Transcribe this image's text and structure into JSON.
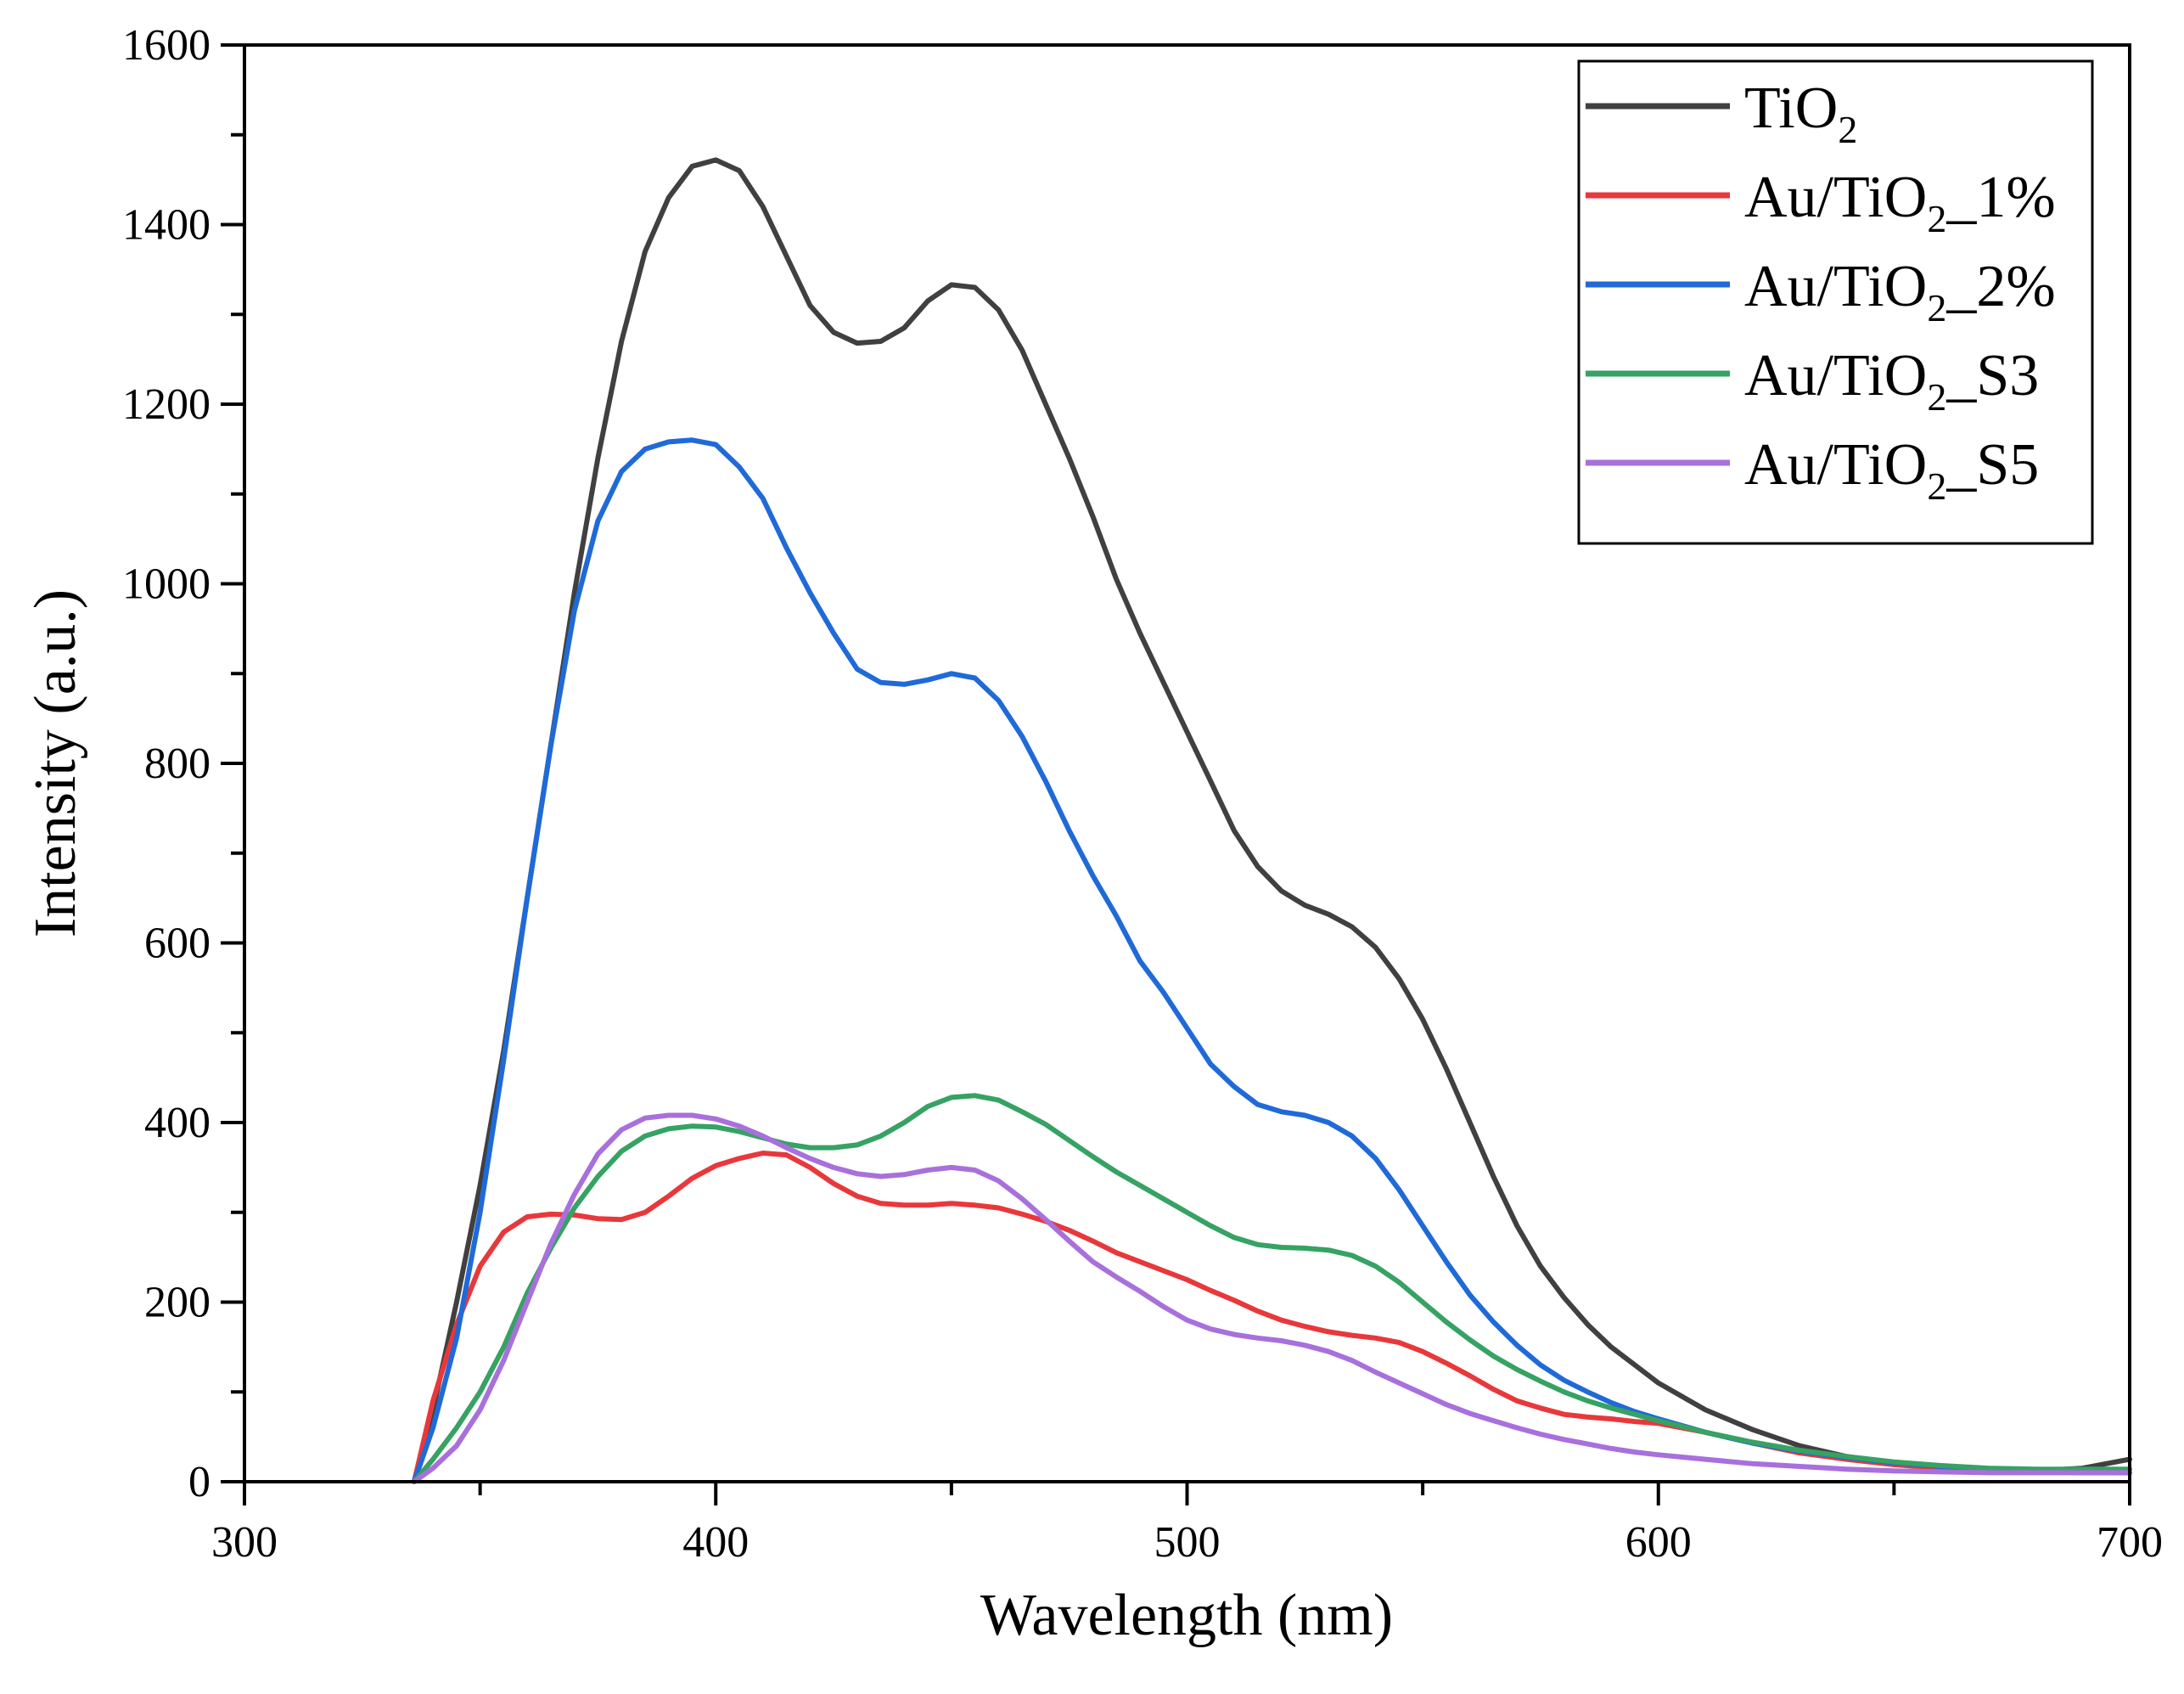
{
  "chart_data": {
    "type": "line",
    "title": "",
    "xlabel": "Wavelength (nm)",
    "ylabel": "Intensity (a.u.)",
    "xlim": [
      300,
      700
    ],
    "ylim": [
      0,
      1600
    ],
    "xticks": [
      300,
      400,
      500,
      600,
      700
    ],
    "yticks": [
      0,
      200,
      400,
      600,
      800,
      1000,
      1200,
      1400,
      1600
    ],
    "legend_position": "top-right",
    "series": [
      {
        "name": "TiO₂",
        "legend": {
          "base": "TiO",
          "sub": "2",
          "suffix": ""
        },
        "color": "#404040",
        "x": [
          336,
          340,
          345,
          350,
          355,
          360,
          365,
          370,
          375,
          380,
          385,
          390,
          395,
          400,
          405,
          410,
          415,
          420,
          425,
          430,
          435,
          440,
          445,
          450,
          455,
          460,
          465,
          470,
          475,
          480,
          485,
          490,
          495,
          500,
          505,
          510,
          515,
          520,
          525,
          530,
          535,
          540,
          545,
          550,
          555,
          560,
          565,
          570,
          575,
          580,
          585,
          590,
          595,
          600,
          610,
          620,
          630,
          640,
          650,
          660,
          670,
          680,
          690,
          700
        ],
        "y": [
          0,
          80,
          200,
          330,
          480,
          650,
          820,
          990,
          1140,
          1270,
          1370,
          1430,
          1465,
          1472,
          1460,
          1420,
          1365,
          1310,
          1280,
          1268,
          1270,
          1285,
          1315,
          1333,
          1330,
          1305,
          1260,
          1200,
          1140,
          1075,
          1005,
          945,
          890,
          835,
          780,
          725,
          685,
          658,
          642,
          632,
          618,
          595,
          560,
          515,
          460,
          400,
          340,
          285,
          240,
          205,
          175,
          150,
          130,
          110,
          80,
          58,
          40,
          28,
          20,
          15,
          13,
          12,
          15,
          25
        ]
      },
      {
        "name": "Au/TiO₂_1%",
        "legend": {
          "base": "Au/TiO",
          "sub": "2",
          "suffix": "_1%"
        },
        "color": "#e8383b",
        "x": [
          336,
          340,
          345,
          350,
          355,
          360,
          365,
          370,
          375,
          380,
          385,
          390,
          395,
          400,
          405,
          410,
          415,
          420,
          425,
          430,
          435,
          440,
          445,
          450,
          455,
          460,
          465,
          470,
          475,
          480,
          485,
          490,
          495,
          500,
          505,
          510,
          515,
          520,
          525,
          530,
          535,
          540,
          545,
          550,
          555,
          560,
          565,
          570,
          575,
          580,
          585,
          590,
          595,
          600,
          610,
          620,
          630,
          640,
          650,
          660,
          670,
          680,
          690,
          700
        ],
        "y": [
          0,
          90,
          175,
          240,
          278,
          295,
          298,
          297,
          293,
          292,
          300,
          318,
          338,
          352,
          360,
          366,
          364,
          350,
          332,
          318,
          310,
          308,
          308,
          310,
          308,
          305,
          298,
          290,
          280,
          268,
          255,
          245,
          235,
          225,
          213,
          202,
          190,
          180,
          173,
          167,
          163,
          160,
          155,
          145,
          132,
          118,
          103,
          90,
          82,
          75,
          72,
          70,
          67,
          65,
          55,
          43,
          32,
          25,
          19,
          15,
          12,
          11,
          10,
          10
        ]
      },
      {
        "name": "Au/TiO₂_2%",
        "legend": {
          "base": "Au/TiO",
          "sub": "2",
          "suffix": "_2%"
        },
        "color": "#1f6ad8",
        "x": [
          336,
          340,
          345,
          350,
          355,
          360,
          365,
          370,
          375,
          380,
          385,
          390,
          395,
          400,
          405,
          410,
          415,
          420,
          425,
          430,
          435,
          440,
          445,
          450,
          455,
          460,
          465,
          470,
          475,
          480,
          485,
          490,
          495,
          500,
          505,
          510,
          515,
          520,
          525,
          530,
          535,
          540,
          545,
          550,
          555,
          560,
          565,
          570,
          575,
          580,
          585,
          590,
          595,
          600,
          610,
          620,
          630,
          640,
          650,
          660,
          670,
          680,
          690,
          700
        ],
        "y": [
          0,
          60,
          160,
          300,
          470,
          650,
          820,
          970,
          1070,
          1125,
          1150,
          1158,
          1160,
          1155,
          1130,
          1095,
          1040,
          990,
          945,
          905,
          890,
          888,
          893,
          900,
          895,
          870,
          830,
          780,
          725,
          675,
          630,
          580,
          545,
          505,
          465,
          440,
          420,
          412,
          408,
          400,
          385,
          360,
          325,
          285,
          245,
          208,
          178,
          152,
          130,
          113,
          100,
          88,
          78,
          70,
          55,
          43,
          34,
          27,
          21,
          17,
          14,
          12,
          11,
          10
        ]
      },
      {
        "name": "Au/TiO₂_S3",
        "legend": {
          "base": "Au/TiO",
          "sub": "2",
          "suffix": "_S3"
        },
        "color": "#36a263",
        "x": [
          336,
          340,
          345,
          350,
          355,
          360,
          365,
          370,
          375,
          380,
          385,
          390,
          395,
          400,
          405,
          410,
          415,
          420,
          425,
          430,
          435,
          440,
          445,
          450,
          455,
          460,
          465,
          470,
          475,
          480,
          485,
          490,
          495,
          500,
          505,
          510,
          515,
          520,
          525,
          530,
          535,
          540,
          545,
          550,
          555,
          560,
          565,
          570,
          575,
          580,
          585,
          590,
          595,
          600,
          610,
          620,
          630,
          640,
          650,
          660,
          670,
          680,
          690,
          700
        ],
        "y": [
          0,
          25,
          60,
          100,
          150,
          210,
          260,
          305,
          340,
          368,
          385,
          393,
          396,
          395,
          390,
          383,
          376,
          372,
          372,
          375,
          385,
          400,
          418,
          428,
          430,
          425,
          412,
          398,
          380,
          362,
          345,
          330,
          315,
          300,
          285,
          272,
          264,
          261,
          260,
          258,
          252,
          240,
          222,
          200,
          178,
          158,
          140,
          125,
          112,
          100,
          90,
          82,
          75,
          68,
          55,
          44,
          35,
          28,
          22,
          18,
          15,
          14,
          14,
          14
        ]
      },
      {
        "name": "Au/TiO₂_S5",
        "legend": {
          "base": "Au/TiO",
          "sub": "2",
          "suffix": "_S5"
        },
        "color": "#a870dc",
        "x": [
          336,
          340,
          345,
          350,
          355,
          360,
          365,
          370,
          375,
          380,
          385,
          390,
          395,
          400,
          405,
          410,
          415,
          420,
          425,
          430,
          435,
          440,
          445,
          450,
          455,
          460,
          465,
          470,
          475,
          480,
          485,
          490,
          495,
          500,
          505,
          510,
          515,
          520,
          525,
          530,
          535,
          540,
          545,
          550,
          555,
          560,
          565,
          570,
          575,
          580,
          585,
          590,
          595,
          600,
          610,
          620,
          630,
          640,
          650,
          660,
          670,
          680,
          690,
          700
        ],
        "y": [
          0,
          15,
          40,
          80,
          135,
          200,
          265,
          320,
          365,
          392,
          405,
          408,
          408,
          404,
          396,
          385,
          372,
          360,
          350,
          343,
          340,
          342,
          347,
          350,
          347,
          335,
          315,
          292,
          268,
          245,
          228,
          212,
          195,
          180,
          170,
          164,
          160,
          157,
          152,
          145,
          135,
          122,
          110,
          98,
          86,
          76,
          68,
          60,
          53,
          47,
          42,
          37,
          33,
          30,
          25,
          20,
          17,
          14,
          12,
          11,
          10,
          10,
          10,
          10
        ]
      }
    ]
  }
}
